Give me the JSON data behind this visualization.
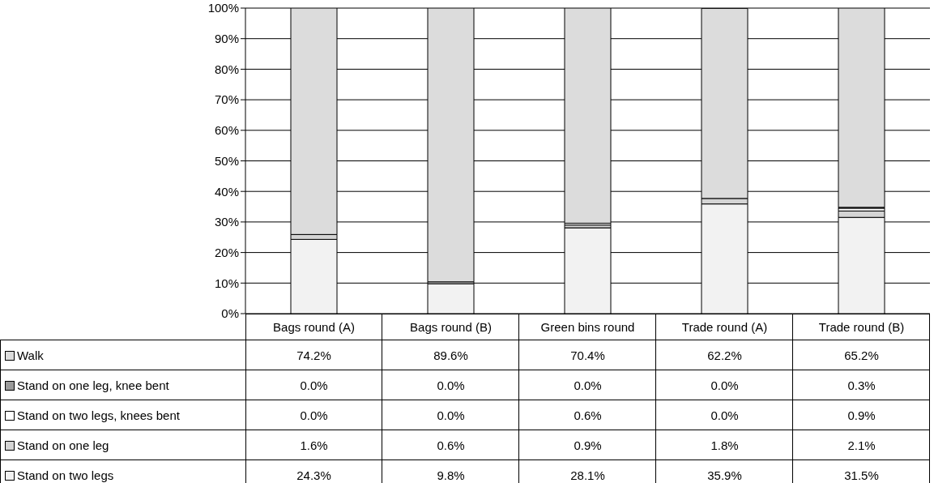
{
  "chart_data": {
    "type": "bar",
    "stacked": true,
    "categories": [
      "Bags round (A)",
      "Bags round (B)",
      "Green bins round",
      "Trade round (A)",
      "Trade round (B)"
    ],
    "series": [
      {
        "name": "Stand on two legs",
        "color": "#f2f2f2",
        "values": [
          24.3,
          9.8,
          28.1,
          35.9,
          31.5
        ],
        "value_labels": [
          "24.3%",
          "9.8%",
          "28.1%",
          "35.9%",
          "31.5%"
        ]
      },
      {
        "name": "Stand on one leg",
        "color": "#d4d4d4",
        "values": [
          1.6,
          0.6,
          0.9,
          1.8,
          2.1
        ],
        "value_labels": [
          "1.6%",
          "0.6%",
          "0.9%",
          "1.8%",
          "2.1%"
        ]
      },
      {
        "name": "Stand on two legs, knees bent",
        "color": "#ffffff",
        "values": [
          0.0,
          0.0,
          0.6,
          0.0,
          0.9
        ],
        "value_labels": [
          "0.0%",
          "0.0%",
          "0.6%",
          "0.0%",
          "0.9%"
        ]
      },
      {
        "name": "Stand on one leg, knee bent",
        "color": "#9a9a9a",
        "values": [
          0.0,
          0.0,
          0.0,
          0.0,
          0.3
        ],
        "value_labels": [
          "0.0%",
          "0.0%",
          "0.0%",
          "0.0%",
          "0.3%"
        ]
      },
      {
        "name": "Walk",
        "color": "#dcdcdc",
        "values": [
          74.2,
          89.6,
          70.4,
          62.2,
          65.2
        ],
        "value_labels": [
          "74.2%",
          "89.6%",
          "70.4%",
          "62.2%",
          "65.2%"
        ]
      }
    ],
    "ylim": [
      0,
      100
    ],
    "yticks": [
      {
        "value": 0,
        "label": "0%"
      },
      {
        "value": 10,
        "label": "10%"
      },
      {
        "value": 20,
        "label": "20%"
      },
      {
        "value": 30,
        "label": "30%"
      },
      {
        "value": 40,
        "label": "40%"
      },
      {
        "value": 50,
        "label": "50%"
      },
      {
        "value": 60,
        "label": "60%"
      },
      {
        "value": 70,
        "label": "70%"
      },
      {
        "value": 80,
        "label": "80%"
      },
      {
        "value": 90,
        "label": "90%"
      },
      {
        "value": 100,
        "label": "100%"
      }
    ],
    "grid": "y",
    "legend": "bottom left"
  }
}
